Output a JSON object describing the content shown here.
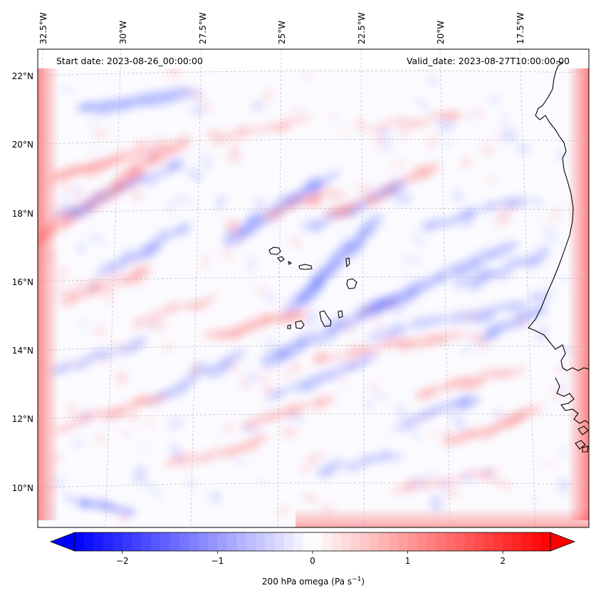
{
  "map": {
    "projection": "Lambert conformal",
    "region": "Cape Verde Islands and West African coast",
    "start_date_label": "Start date: 2023-08-26_00:00:00",
    "valid_date_label": "Valid_date: 2023-08-27T10:00:00.00",
    "lon_ticks": [
      "32.5°W",
      "30°W",
      "27.5°W",
      "25°W",
      "22.5°W",
      "20°W",
      "17.5°W"
    ],
    "lat_ticks": [
      "22°N",
      "20°N",
      "18°N",
      "16°N",
      "14°N",
      "12°N",
      "10°N"
    ],
    "field": {
      "variable": "omega",
      "level": "200 hPa",
      "colormap": "bwr",
      "vmin": -2.5,
      "vmax": 2.5,
      "extend": "both"
    },
    "colorbar": {
      "ticks": [
        "−2",
        "−1",
        "0",
        "1",
        "2"
      ],
      "tick_values": [
        -2,
        -1,
        0,
        1,
        2
      ],
      "label_main": "200 hPa omega (Pa s",
      "label_exp": "−1",
      "label_close": ")",
      "colors": {
        "negative": "#0000ff",
        "zero": "#ffffff",
        "positive": "#ff0000"
      }
    },
    "coastline_color": "#000000",
    "gridline_color": "#b0b0b0"
  }
}
